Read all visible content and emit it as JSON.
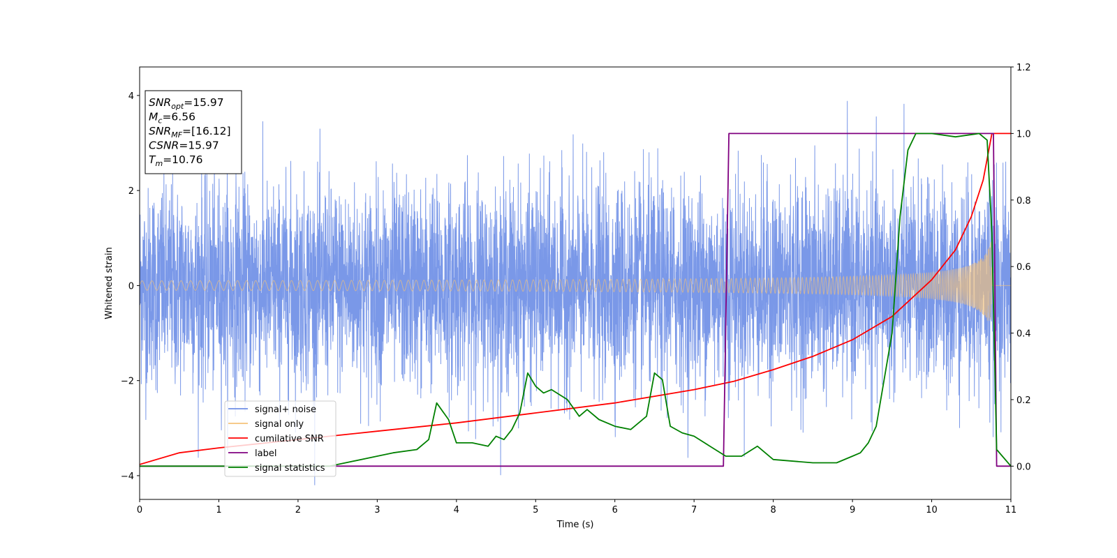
{
  "chart_data": {
    "type": "line",
    "xlabel": "Time (s)",
    "ylabel_left": "Whitened strain",
    "xlim": [
      0,
      11
    ],
    "ylim_left": [
      -4.5,
      4.6
    ],
    "ylim_right": [
      -0.1,
      1.2
    ],
    "xticks": [
      0,
      1,
      2,
      3,
      4,
      5,
      6,
      7,
      8,
      9,
      10,
      11
    ],
    "yticks_left": [
      -4,
      -2,
      0,
      2,
      4
    ],
    "yticks_left_labels": [
      "−4",
      "−2",
      "0",
      "2",
      "4"
    ],
    "yticks_right": [
      0.0,
      0.2,
      0.4,
      0.6,
      0.8,
      1.0,
      1.2
    ],
    "yticks_right_labels": [
      "0.0",
      "0.2",
      "0.4",
      "0.6",
      "0.8",
      "1.0",
      "1.2"
    ],
    "annotation": [
      {
        "base": "SNR",
        "sub": "opt",
        "value": "=15.97"
      },
      {
        "base": "M",
        "sub": "c",
        "value": "=6.56"
      },
      {
        "base": "SNR",
        "sub": "MF",
        "value": "=[16.12]"
      },
      {
        "base": "CSNR",
        "sub": "",
        "value": "=15.97"
      },
      {
        "base": "T",
        "sub": "m",
        "value": "=10.76"
      }
    ],
    "legend_position": "lower-left",
    "series": [
      {
        "name": "signal+ noise",
        "axis": "left",
        "color": "#6f8fe6",
        "noise_sigma": 1.0,
        "noise_max": 4.2
      },
      {
        "name": "signal only",
        "axis": "left",
        "color": "#f5c27a",
        "chirp_end_time": 10.76,
        "amp_start": 0.05,
        "amp_end": 1.0
      },
      {
        "name": "cumilative SNR",
        "axis": "right",
        "color": "#ff0000",
        "x": [
          0,
          0.5,
          1,
          2,
          3,
          4,
          5,
          6,
          7,
          7.5,
          8,
          8.5,
          9,
          9.5,
          10,
          10.3,
          10.5,
          10.65,
          10.76,
          11
        ],
        "y": [
          0.005,
          0.04,
          0.055,
          0.08,
          0.105,
          0.13,
          0.16,
          0.19,
          0.23,
          0.255,
          0.29,
          0.33,
          0.38,
          0.45,
          0.56,
          0.65,
          0.75,
          0.86,
          1.0,
          1.0
        ]
      },
      {
        "name": "label",
        "axis": "right",
        "color": "#800080",
        "x": [
          0,
          7.37,
          7.44,
          10.78,
          10.82,
          11
        ],
        "y": [
          0,
          0,
          1.0,
          1.0,
          0,
          0
        ]
      },
      {
        "name": "signal statistics",
        "axis": "right",
        "color": "#008000",
        "x": [
          0,
          2.4,
          2.6,
          3.0,
          3.2,
          3.5,
          3.65,
          3.75,
          3.9,
          4.0,
          4.2,
          4.4,
          4.5,
          4.6,
          4.7,
          4.8,
          4.9,
          5.0,
          5.1,
          5.2,
          5.4,
          5.55,
          5.65,
          5.8,
          6.0,
          6.2,
          6.4,
          6.5,
          6.6,
          6.7,
          6.85,
          7.0,
          7.2,
          7.4,
          7.6,
          7.8,
          8.0,
          8.5,
          8.8,
          9.0,
          9.1,
          9.2,
          9.3,
          9.5,
          9.6,
          9.7,
          9.8,
          10.0,
          10.3,
          10.6,
          10.7,
          10.76,
          10.82,
          11
        ],
        "y": [
          0,
          0,
          0.01,
          0.03,
          0.04,
          0.05,
          0.08,
          0.19,
          0.14,
          0.07,
          0.07,
          0.06,
          0.09,
          0.08,
          0.11,
          0.16,
          0.28,
          0.24,
          0.22,
          0.23,
          0.2,
          0.15,
          0.17,
          0.14,
          0.12,
          0.11,
          0.15,
          0.28,
          0.26,
          0.12,
          0.1,
          0.09,
          0.06,
          0.03,
          0.03,
          0.06,
          0.02,
          0.01,
          0.01,
          0.03,
          0.04,
          0.07,
          0.12,
          0.4,
          0.75,
          0.95,
          1.0,
          1.0,
          0.99,
          1.0,
          0.98,
          0.7,
          0.05,
          0.0
        ]
      }
    ]
  }
}
